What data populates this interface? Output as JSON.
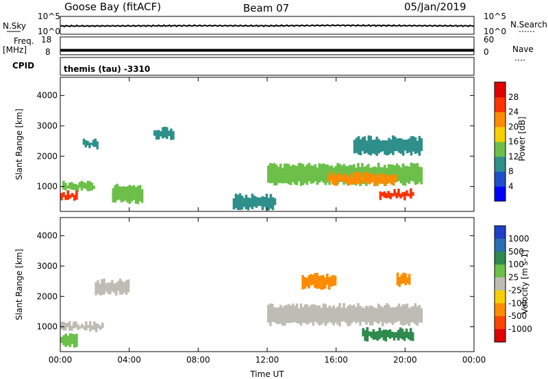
{
  "header": {
    "station": "Goose Bay (fitACF)",
    "beam": "Beam 07",
    "date": "05/Jan/2019"
  },
  "chart_data": [
    {
      "type": "line",
      "panel": "noise",
      "left_label": "N.Sky",
      "left_ticks": [
        "10^5",
        "10^0"
      ],
      "right_label": "N.Search",
      "right_ticks": [
        "10^5",
        "10^0"
      ],
      "scale": "log",
      "ylim": [
        1,
        100000
      ],
      "description_of_trace": "near-constant noise level ~10^2 across the day",
      "x": [
        "00:00",
        "04:00",
        "08:00",
        "12:00",
        "16:00",
        "20:00",
        "00:00"
      ],
      "values": [
        200,
        220,
        250,
        230,
        300,
        250,
        220
      ]
    },
    {
      "type": "line",
      "panel": "frequency",
      "left_label": "Freq.",
      "left_unit": "[MHz]",
      "left_ticks": [
        "18",
        "8"
      ],
      "right_label": "Nave",
      "right_ticks": [
        "60",
        "0"
      ],
      "x": [
        "00:00",
        "04:00",
        "08:00",
        "12:00",
        "16:00",
        "20:00",
        "00:00"
      ],
      "values": [
        10.5,
        10.5,
        10.5,
        10.5,
        10.5,
        10.5,
        10.5
      ]
    },
    {
      "type": "heatmap",
      "panel": "power",
      "cpid_label": "CPID",
      "cpid_text": "themis (tau) -3310",
      "ylabel": "Slant Range [km]",
      "yticks": [
        1000,
        2000,
        3000,
        4000
      ],
      "ylim": [
        180,
        4600
      ],
      "xticks": [
        "00:00",
        "04:00",
        "08:00",
        "12:00",
        "16:00",
        "20:00",
        "00:00"
      ],
      "xlim_hours": [
        0,
        24
      ],
      "colorbar_label": "Power [dB]",
      "colorbar_ticks": [
        "4",
        "8",
        "12",
        "16",
        "20",
        "24",
        "28"
      ],
      "colorbar_range": [
        0,
        30
      ],
      "colors": [
        "#0000ff",
        "#1f4fc8",
        "#2f8f8a",
        "#6cc04a",
        "#f7d000",
        "#ff8c00",
        "#ff3300",
        "#e00000"
      ],
      "echo_regions": [
        {
          "t0": 0.0,
          "t1": 2.0,
          "r0": 900,
          "r1": 1100,
          "value": 12
        },
        {
          "t0": 0.0,
          "t1": 1.0,
          "r0": 600,
          "r1": 800,
          "value": 24
        },
        {
          "t0": 1.3,
          "t1": 2.2,
          "r0": 2300,
          "r1": 2500,
          "value": 10
        },
        {
          "t0": 3.0,
          "t1": 4.8,
          "r0": 500,
          "r1": 1000,
          "value": 12
        },
        {
          "t0": 5.4,
          "t1": 6.6,
          "r0": 2600,
          "r1": 2900,
          "value": 8
        },
        {
          "t0": 10.0,
          "t1": 12.5,
          "r0": 300,
          "r1": 700,
          "value": 8
        },
        {
          "t0": 12.0,
          "t1": 21.0,
          "r0": 1100,
          "r1": 1700,
          "value": 14
        },
        {
          "t0": 15.5,
          "t1": 19.5,
          "r0": 1100,
          "r1": 1400,
          "value": 20
        },
        {
          "t0": 18.5,
          "t1": 20.5,
          "r0": 600,
          "r1": 850,
          "value": 26
        },
        {
          "t0": 17.0,
          "t1": 21.0,
          "r0": 2100,
          "r1": 2600,
          "value": 8
        }
      ]
    },
    {
      "type": "heatmap",
      "panel": "velocity",
      "ylabel": "Slant Range [km]",
      "yticks": [
        1000,
        2000,
        3000,
        4000
      ],
      "ylim": [
        180,
        4600
      ],
      "xticks": [
        "00:00",
        "04:00",
        "08:00",
        "12:00",
        "16:00",
        "20:00",
        "00:00"
      ],
      "xlabel": "Time UT",
      "xlim_hours": [
        0,
        24
      ],
      "colorbar_label": "Velocity [m s-1]",
      "colorbar_ticks": [
        "1000",
        "500",
        "100",
        "25",
        "-25",
        "-100",
        "-500",
        "-1000"
      ],
      "colors": [
        "#1f3fc8",
        "#2a6fb0",
        "#2e8a4f",
        "#6cc04a",
        "#bdbdb5",
        "#f7d000",
        "#ff8c00",
        "#ff4400",
        "#e00000"
      ],
      "echo_regions": [
        {
          "t0": 0.0,
          "t1": 2.5,
          "r0": 900,
          "r1": 1100,
          "value": 0
        },
        {
          "t0": 0.0,
          "t1": 1.0,
          "r0": 400,
          "r1": 700,
          "value": 50
        },
        {
          "t0": 2.0,
          "t1": 4.0,
          "r0": 2100,
          "r1": 2500,
          "value": 0
        },
        {
          "t0": 12.0,
          "t1": 21.0,
          "r0": 1100,
          "r1": 1700,
          "value": 0
        },
        {
          "t0": 14.0,
          "t1": 16.0,
          "r0": 2300,
          "r1": 2700,
          "value": -300
        },
        {
          "t0": 17.5,
          "t1": 20.5,
          "r0": 600,
          "r1": 900,
          "value": 80
        },
        {
          "t0": 19.5,
          "t1": 20.3,
          "r0": 2400,
          "r1": 2700,
          "value": -300
        }
      ]
    }
  ]
}
